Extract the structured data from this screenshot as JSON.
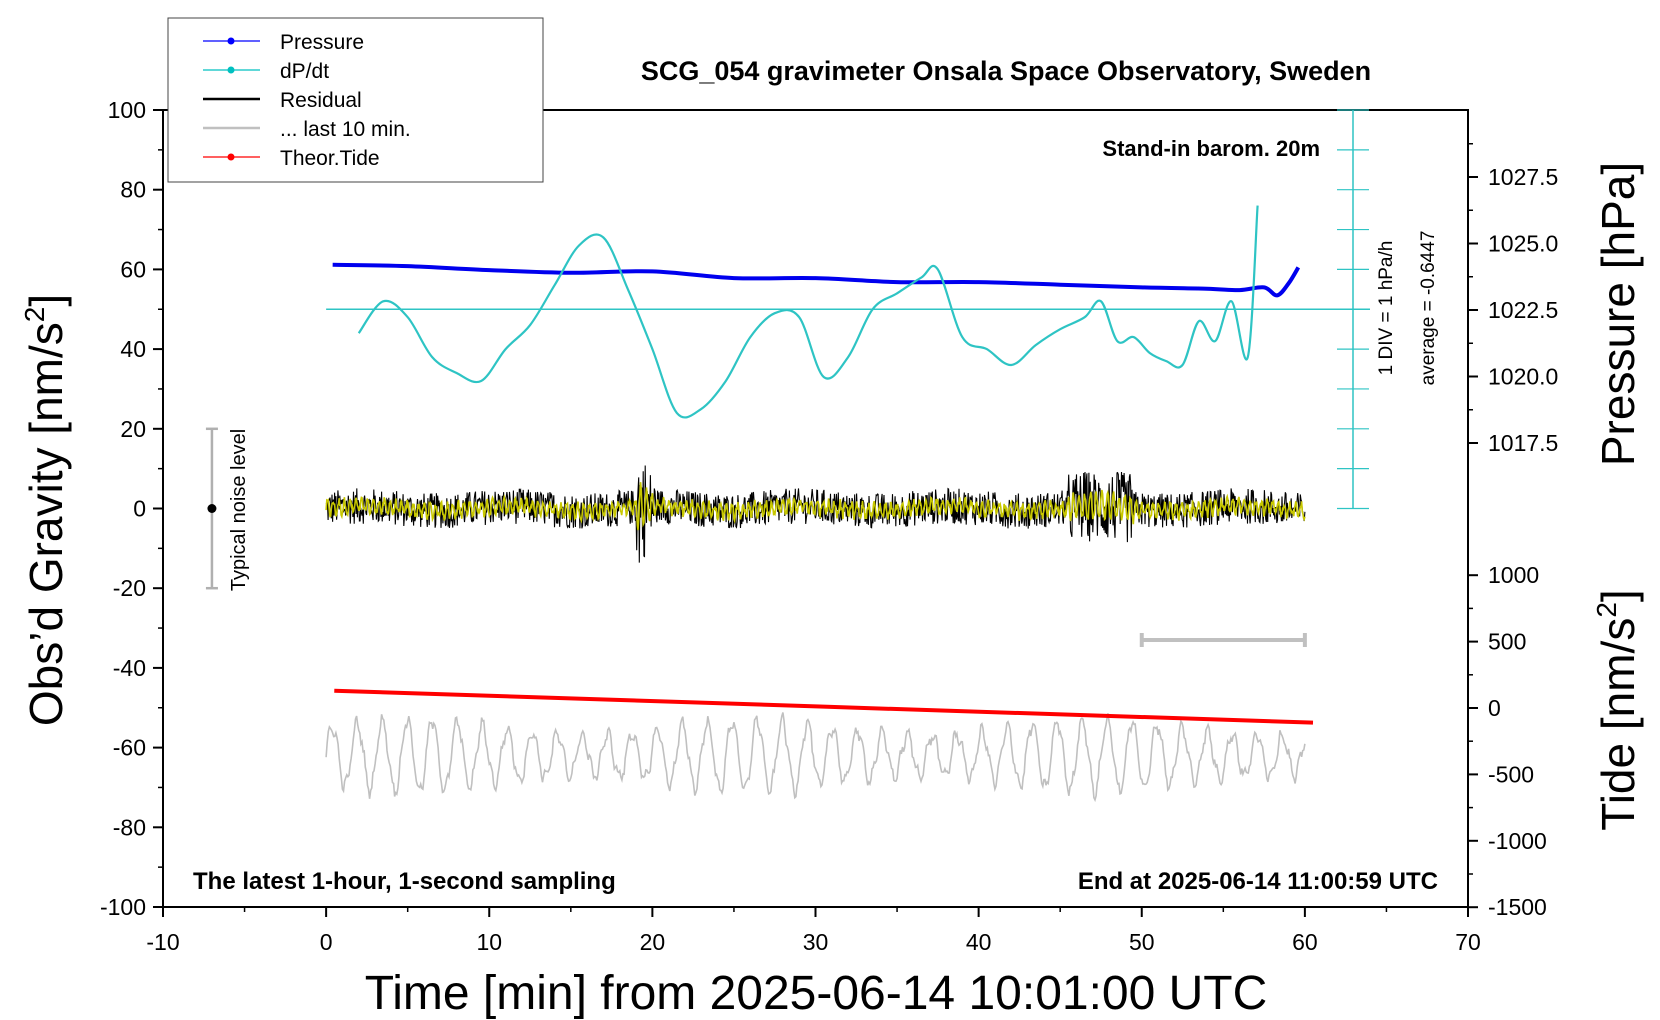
{
  "title": "SCG_054 gravimeter Onsala Space Observatory, Sweden",
  "annotations": {
    "barometer": "Stand-in barom. 20m",
    "bottom_left": "The latest 1-hour, 1-second sampling",
    "bottom_right": "End at 2025-06-14 11:00:59 UTC",
    "noise_label": "Typical noise level",
    "div_label": "1 DIV = 1 hPa/h",
    "average_label": "average = -0.6447"
  },
  "axes": {
    "x_label": "Time [min] from 2025-06-14 10:01:00 UTC",
    "y_left_label": "Obs’d Gravity [nm/s",
    "y_left_sup": "2",
    "y_left_close": "]",
    "y_right_top_label": "Pressure [hPa]",
    "y_right_bottom_label": "Tide [nm/s",
    "y_right_bottom_sup": "2",
    "y_right_bottom_close": "]"
  },
  "legend": [
    {
      "label": "Pressure",
      "color": "#0000ff",
      "marker": true
    },
    {
      "label": "dP/dt",
      "color": "#00c0c0",
      "marker": true
    },
    {
      "label": "Residual",
      "color": "#000000",
      "marker": false
    },
    {
      "label": "... last 10 min.",
      "color": "#c0c0c0",
      "marker": false
    },
    {
      "label": "Theor.Tide",
      "color": "#ff0000",
      "marker": true
    }
  ],
  "colors": {
    "pressure": "#0000ee",
    "dpdt": "#2ec4c4",
    "residual": "#000000",
    "filtered": "#c8c800",
    "last10": "#c0c0c0",
    "tide": "#ff0000",
    "noise_bar": "#b0b0b0"
  },
  "chart_data": {
    "type": "line",
    "xlim": [
      -10,
      70
    ],
    "x_ticks": [
      "-10",
      "0",
      "10",
      "20",
      "30",
      "40",
      "50",
      "60",
      "70"
    ],
    "y_left": {
      "lim": [
        -100,
        100
      ],
      "ticks": [
        "-100",
        "-80",
        "-60",
        "-40",
        "-20",
        "0",
        "20",
        "40",
        "60",
        "80",
        "100"
      ]
    },
    "y_right_pressure": {
      "ticks": [
        "1017.5",
        "1020.0",
        "1022.5",
        "1025.0",
        "1027.5"
      ]
    },
    "y_right_tide": {
      "lim": [
        -1500,
        1500
      ],
      "ticks": [
        "-1500",
        "-1000",
        "-500",
        "0",
        "500",
        "1000"
      ]
    },
    "series": [
      {
        "name": "Pressure",
        "unit": "hPa",
        "x": [
          0.4,
          5,
          10,
          15,
          20,
          25,
          30,
          35,
          40,
          45,
          50,
          54,
          56,
          57.5,
          58.3,
          59,
          59.6
        ],
        "y": [
          1024.2,
          1024.15,
          1024.0,
          1023.9,
          1023.95,
          1023.7,
          1023.7,
          1023.55,
          1023.55,
          1023.45,
          1023.35,
          1023.3,
          1023.25,
          1023.35,
          1023.05,
          1023.5,
          1024.1
        ]
      },
      {
        "name": "dP/dt",
        "unit": "nm/s2 (plotted)",
        "x": [
          2,
          3.5,
          5,
          6.5,
          8,
          9.5,
          11,
          12.5,
          14,
          15.5,
          17,
          18.5,
          20,
          21.5,
          23,
          24.5,
          26,
          27.5,
          29,
          30.5,
          32,
          33.5,
          35,
          36.5,
          37.5,
          39,
          40.5,
          42,
          43.5,
          45,
          46.5,
          47.5,
          48.5,
          49.5,
          50.5,
          51.5,
          52.5,
          53.5,
          54.5,
          55.5,
          56.5,
          57.1
        ],
        "y": [
          44,
          52,
          48,
          38,
          34,
          32,
          40,
          46,
          56,
          66,
          68,
          55,
          40,
          24,
          25,
          32,
          43,
          49,
          48,
          33,
          38,
          50,
          54,
          58,
          60,
          43,
          40,
          36,
          41,
          45,
          48,
          52,
          42,
          43,
          39,
          37,
          36,
          47,
          42,
          52,
          38,
          76
        ]
      },
      {
        "name": "Theor.Tide",
        "unit": "nm/s2 (right axis)",
        "x": [
          0.5,
          60.5
        ],
        "y": [
          130,
          -110
        ]
      }
    ],
    "reference_line": {
      "name": "average",
      "y": 50
    },
    "noise_bar": {
      "x": -7,
      "y_range": [
        -20,
        20
      ],
      "center": 0
    },
    "last_10_min_bar": {
      "x_range": [
        50,
        60
      ],
      "y": -33
    }
  }
}
